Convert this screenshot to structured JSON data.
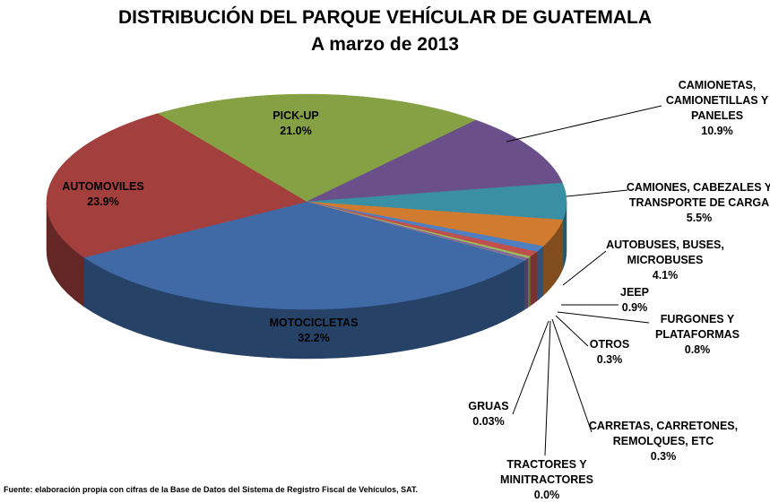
{
  "chart_data": {
    "type": "pie3d",
    "title": "DISTRIBUCIÓN DEL PARQUE VEHÍCULAR DE GUATEMALA",
    "subtitle": "A marzo de 2013",
    "source": "Fuente: elaboración propia con cifras de la Base de Datos del Sistema de Registro Fiscal de Vehículos, SAT.",
    "categories": [
      "PICK-UP",
      "CAMIONETAS, CAMIONETILLAS Y PANELES",
      "CAMIONES, CABEZALES Y TRANSPORTE DE CARGA",
      "AUTOBUSES, BUSES, MICROBUSES",
      "JEEP",
      "FURGONES Y PLATAFORMAS",
      "OTROS",
      "CARRETAS, CARRETONES, REMOLQUES, ETC",
      "TRACTORES Y MINITRACTORES",
      "GRUAS",
      "MOTOCICLETAS",
      "AUTOMOVILES"
    ],
    "values": [
      21.0,
      10.9,
      5.5,
      4.1,
      0.9,
      0.8,
      0.3,
      0.3,
      0.0,
      0.03,
      32.2,
      23.9
    ],
    "value_labels": [
      "21.0%",
      "10.9%",
      "5.5%",
      "4.1%",
      "0.9%",
      "0.8%",
      "0.3%",
      "0.3%",
      "0.0%",
      "0.03%",
      "32.2%",
      "23.9%"
    ],
    "colors": [
      "#86a044",
      "#6a4f8a",
      "#3a8fa5",
      "#d07b30",
      "#4f7fc0",
      "#c0504d",
      "#9bbb59",
      "#8064a2",
      "#4bacc6",
      "#f79646",
      "#3f6aa6",
      "#a33f3c"
    ]
  }
}
